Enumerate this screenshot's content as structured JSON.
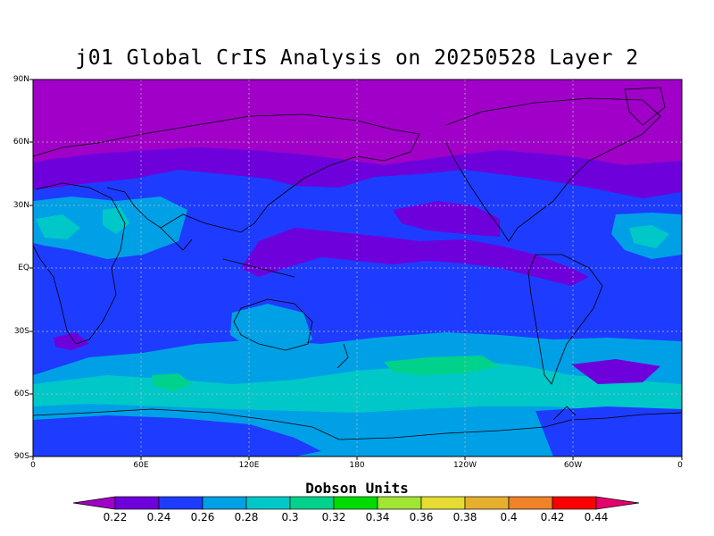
{
  "title": "j01 Global CrIS Analysis on 20250528 Layer 2",
  "map": {
    "lat_ticks": [
      "90N",
      "60N",
      "30N",
      "EQ",
      "30S",
      "60S",
      "90S"
    ],
    "lon_ticks": [
      "0",
      "60E",
      "120E",
      "180",
      "120W",
      "60W",
      "0"
    ],
    "grid": true,
    "projection": "cylindrical equidistant",
    "lon_range": [
      "0",
      "360"
    ],
    "lat_range": [
      "90S",
      "90N"
    ]
  },
  "colorbar": {
    "title": "Dobson Units",
    "levels": [
      "0.22",
      "0.24",
      "0.26",
      "0.28",
      "0.3",
      "0.32",
      "0.34",
      "0.36",
      "0.38",
      "0.4",
      "0.42",
      "0.44"
    ],
    "colors": [
      "#a000c8",
      "#6e00dc",
      "#1e3cff",
      "#00a0e6",
      "#00c8c8",
      "#00d28c",
      "#00dc00",
      "#a0e632",
      "#e6dc32",
      "#e6af2d",
      "#f08228",
      "#fa0000",
      "#e6006e"
    ]
  }
}
